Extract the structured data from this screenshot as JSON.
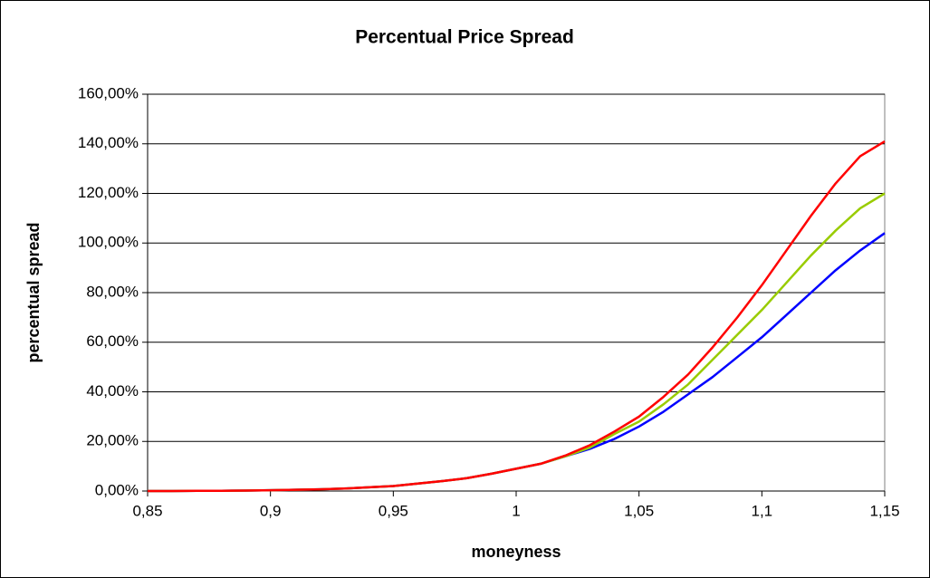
{
  "chart_data": {
    "type": "line",
    "title": "Percentual Price Spread",
    "x_label": "moneyness",
    "y_label": "percentual spread",
    "x": [
      0.85,
      0.86,
      0.87,
      0.88,
      0.89,
      0.9,
      0.91,
      0.92,
      0.93,
      0.94,
      0.95,
      0.96,
      0.97,
      0.98,
      0.99,
      1.0,
      1.01,
      1.02,
      1.03,
      1.04,
      1.05,
      1.06,
      1.07,
      1.08,
      1.09,
      1.1,
      1.11,
      1.12,
      1.13,
      1.14,
      1.15
    ],
    "series": [
      {
        "color": "#0000ff",
        "values": [
          0,
          0,
          0.1,
          0.1,
          0.2,
          0.3,
          0.5,
          0.7,
          1,
          1.5,
          2,
          3,
          4,
          5.2,
          7,
          9,
          11,
          14,
          17,
          21,
          26,
          32,
          39,
          46,
          54,
          62,
          71,
          80,
          89,
          97,
          104
        ]
      },
      {
        "color": "#99cc00",
        "values": [
          0,
          0,
          0.1,
          0.1,
          0.2,
          0.3,
          0.5,
          0.7,
          1,
          1.5,
          2,
          3,
          4,
          5.2,
          7,
          9,
          11,
          14,
          17.5,
          23,
          28,
          35,
          43,
          53,
          63,
          73,
          84,
          95,
          105,
          114,
          120
        ]
      },
      {
        "color": "#ff0000",
        "values": [
          0,
          0,
          0.1,
          0.1,
          0.2,
          0.3,
          0.5,
          0.7,
          1,
          1.5,
          2,
          3,
          4,
          5.2,
          7,
          9,
          11,
          14.3,
          18.5,
          24,
          30,
          38,
          47,
          58,
          70,
          83,
          97,
          111,
          124,
          135,
          141
        ]
      }
    ],
    "xlim": [
      0.85,
      1.15
    ],
    "xticks": [
      {
        "value": 0.85,
        "label": "0,85"
      },
      {
        "value": 0.9,
        "label": "0,9"
      },
      {
        "value": 0.95,
        "label": "0,95"
      },
      1,
      {
        "value": 1.05,
        "label": "1,05"
      },
      {
        "value": 1.1,
        "label": "1,1"
      },
      {
        "value": 1.15,
        "label": "1,15"
      }
    ],
    "ylim": [
      0,
      160
    ],
    "yticks": [
      {
        "value": 0,
        "label": "0,00%"
      },
      {
        "value": 20,
        "label": "20,00%"
      },
      {
        "value": 40,
        "label": "40,00%"
      },
      {
        "value": 60,
        "label": "60,00%"
      },
      {
        "value": 80,
        "label": "80,00%"
      },
      {
        "value": 100,
        "label": "100,00%"
      },
      {
        "value": 120,
        "label": "120,00%"
      },
      {
        "value": 140,
        "label": "140,00%"
      },
      {
        "value": 160,
        "label": "160,00%"
      }
    ],
    "grid": true
  }
}
